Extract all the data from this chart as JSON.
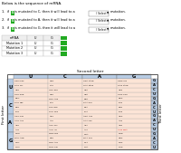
{
  "title_text": "Below is the sequence of mRNA.",
  "questions": [
    "1.  if U is mutated to C, then it will lead to a",
    "2.  if U is mutated to A, then it will lead to a",
    "3.  if U is mutated to G, then it will lead to a"
  ],
  "select_label": "( Select )",
  "mutation_label": "mutation.",
  "small_table_rows": [
    [
      "mRNA",
      "U",
      "G"
    ],
    [
      "Mutation 1",
      "U",
      "G"
    ],
    [
      "Mutation 2",
      "U",
      "G"
    ],
    [
      "Mutation 3",
      "U",
      "G"
    ]
  ],
  "codon_table_title": "Second letter",
  "first_letter_label": "First letter",
  "third_letter_label": "Third letter",
  "second_letters": [
    "U",
    "C",
    "A",
    "G"
  ],
  "first_letters": [
    "U",
    "C",
    "A",
    "G"
  ],
  "third_letters": [
    "U",
    "C",
    "A",
    "G"
  ],
  "codons": {
    "UU": {
      "U": "UUU Phe",
      "C": "UCU",
      "A": "UAU Tyr",
      "G": "UGU Cys"
    },
    "UC": {
      "U": "UUC",
      "C": "UCC Ser",
      "A": "UAC",
      "G": "UGC"
    },
    "UA": {
      "U": "UUA",
      "C": "UCA",
      "A": "UAA Stop",
      "G": "UGA Stop"
    },
    "UG": {
      "U": "UUG Leu",
      "C": "UCG",
      "A": "UAG Stop",
      "G": "UGG Trp"
    },
    "CU": {
      "U": "CUU",
      "C": "CCU",
      "A": "CAU His",
      "G": "CGU"
    },
    "CC": {
      "U": "CUC Leu",
      "C": "CCC Pro",
      "A": "CAC",
      "G": "CGC Arg"
    },
    "CA": {
      "U": "CUA",
      "C": "CCA",
      "A": "CAA Gln",
      "G": "CGA"
    },
    "CG": {
      "U": "CUG",
      "C": "CCG",
      "A": "CAG",
      "G": "CGG"
    },
    "AU": {
      "U": "AUU",
      "C": "ACU",
      "A": "AAU Asn",
      "G": "AGU Ser"
    },
    "AC": {
      "U": "AUC Ile",
      "C": "ACC Thr",
      "A": "AAC",
      "G": "AGC"
    },
    "AA": {
      "U": "AUA",
      "C": "ACA",
      "A": "AAA Lys",
      "G": "AGA Arg"
    },
    "AG": {
      "U": "AUG Met",
      "C": "ACG",
      "A": "AAG",
      "G": "AGG"
    },
    "GU": {
      "U": "GUU",
      "C": "GCU",
      "A": "GAU Asp",
      "G": "GGU"
    },
    "GC": {
      "U": "GUC Val",
      "C": "GCC Ala",
      "A": "GAC",
      "G": "GGC Gly"
    },
    "GA": {
      "U": "GUA",
      "C": "GCA",
      "A": "GAA Glu",
      "G": "GGA"
    },
    "GG": {
      "U": "GUG",
      "C": "GCG",
      "A": "GAG",
      "G": "GGG"
    }
  },
  "bg_color": "#ffffff",
  "header_color": "#b8cce4",
  "cell_color": "#fce4d6",
  "green_color": "#22aa22",
  "red_color": "#cc0000",
  "highlight_codons": [
    "AUG Met"
  ]
}
